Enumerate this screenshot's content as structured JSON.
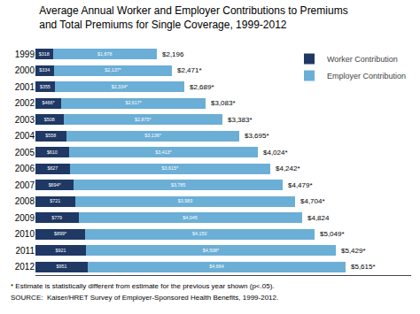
{
  "chart_data": {
    "type": "bar",
    "orientation": "horizontal",
    "stacked": true,
    "title": "Average Annual Worker and Employer Contributions to Premiums\nand Total Premiums for Single Coverage, 1999-2012",
    "categories": [
      "1999",
      "2000",
      "2001",
      "2002",
      "2003",
      "2004",
      "2005",
      "2006",
      "2007",
      "2008",
      "2009",
      "2010",
      "2011",
      "2012"
    ],
    "series": [
      {
        "name": "Worker Contribution",
        "color": "#1f3864",
        "values": [
          318,
          334,
          355,
          466,
          508,
          558,
          610,
          627,
          694,
          721,
          779,
          899,
          921,
          951
        ],
        "value_labels": [
          "$318",
          "$334",
          "$355",
          "$466*",
          "$508",
          "$558",
          "$610",
          "$627",
          "$694*",
          "$721",
          "$779",
          "$899*",
          "$921",
          "$951"
        ]
      },
      {
        "name": "Employer Contribution",
        "color": "#6baed6",
        "values": [
          1878,
          2137,
          2334,
          2617,
          2875,
          3136,
          3413,
          3615,
          3785,
          3983,
          4045,
          4150,
          4508,
          4664
        ],
        "value_labels": [
          "$1,878",
          "$2,137*",
          "$2,334*",
          "$2,617*",
          "$2,875*",
          "$3,136*",
          "$3,413*",
          "$3,615*",
          "$3,785",
          "$3,983",
          "$4,045",
          "$4,150",
          "$4,508*",
          "$4,664"
        ]
      }
    ],
    "total_labels": [
      "$2,196",
      "$2,471*",
      "$2,689*",
      "$3,083*",
      "$3,383*",
      "$3,695*",
      "$4,024*",
      "$4,242*",
      "$4,479*",
      "$4,704*",
      "$4,824",
      "$5,049*",
      "$5,429*",
      "$5,615*"
    ],
    "data_labels": true,
    "xlim": [
      0,
      6800
    ],
    "tick_labels": "y",
    "grid": false,
    "legend": "upper right",
    "annotations": [
      "* Estimate is statistically different from estimate for the previous year shown (p<.05).",
      "SOURCE:  Kaiser/HRET Survey of Employer-Sponsored Health Benefits, 1999-2012."
    ]
  }
}
